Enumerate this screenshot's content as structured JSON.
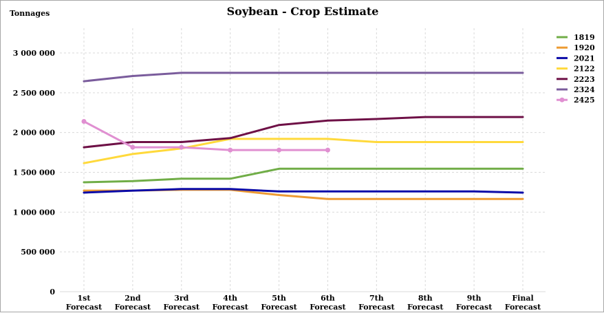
{
  "chart_data": {
    "type": "line",
    "title": "Soybean - Crop Estimate",
    "ylabel": "Tonnages",
    "xlabel": "",
    "ylim": [
      0,
      3000000
    ],
    "yticks": [
      0,
      500000,
      1000000,
      1500000,
      2000000,
      2500000,
      3000000
    ],
    "ytick_labels": [
      "0",
      "500 000",
      "1 000 000",
      "1 500 000",
      "2 000 000",
      "2 500 000",
      "3 000 000"
    ],
    "categories": [
      [
        "1st",
        "Forecast"
      ],
      [
        "2nd",
        "Forecast"
      ],
      [
        "3rd",
        "Forecast"
      ],
      [
        "4th",
        "Forecast"
      ],
      [
        "5th",
        "Forecast"
      ],
      [
        "6th",
        "Forecast"
      ],
      [
        "7th",
        "Forecast"
      ],
      [
        "8th",
        "Forecast"
      ],
      [
        "9th",
        "Forecast"
      ],
      [
        "Final",
        "Forecast"
      ]
    ],
    "grid": true,
    "legend_position": "right",
    "series": [
      {
        "name": "1819",
        "color": "#70ad47",
        "marker": false,
        "values": [
          1375000,
          1390000,
          1420000,
          1420000,
          1545000,
          1545000,
          1545000,
          1545000,
          1545000,
          1545000
        ]
      },
      {
        "name": "1920",
        "color": "#ed9b33",
        "marker": false,
        "values": [
          1270000,
          1270000,
          1280000,
          1280000,
          1215000,
          1165000,
          1165000,
          1165000,
          1165000,
          1165000
        ]
      },
      {
        "name": "2021",
        "color": "#0a0aa8",
        "marker": false,
        "values": [
          1245000,
          1270000,
          1290000,
          1290000,
          1260000,
          1260000,
          1260000,
          1260000,
          1260000,
          1245000
        ]
      },
      {
        "name": "2122",
        "color": "#ffd93b",
        "marker": false,
        "values": [
          1615000,
          1730000,
          1800000,
          1920000,
          1920000,
          1920000,
          1880000,
          1880000,
          1880000,
          1880000
        ]
      },
      {
        "name": "2223",
        "color": "#6e1046",
        "marker": false,
        "values": [
          1815000,
          1880000,
          1880000,
          1930000,
          2095000,
          2150000,
          2170000,
          2195000,
          2195000,
          2195000
        ]
      },
      {
        "name": "2324",
        "color": "#7a5c9c",
        "marker": false,
        "values": [
          2645000,
          2710000,
          2750000,
          2750000,
          2750000,
          2750000,
          2750000,
          2750000,
          2750000,
          2750000
        ]
      },
      {
        "name": "2425",
        "color": "#e08fd1",
        "marker": true,
        "values": [
          2140000,
          1815000,
          1815000,
          1780000,
          1780000,
          1780000,
          null,
          null,
          null,
          null
        ]
      }
    ]
  }
}
